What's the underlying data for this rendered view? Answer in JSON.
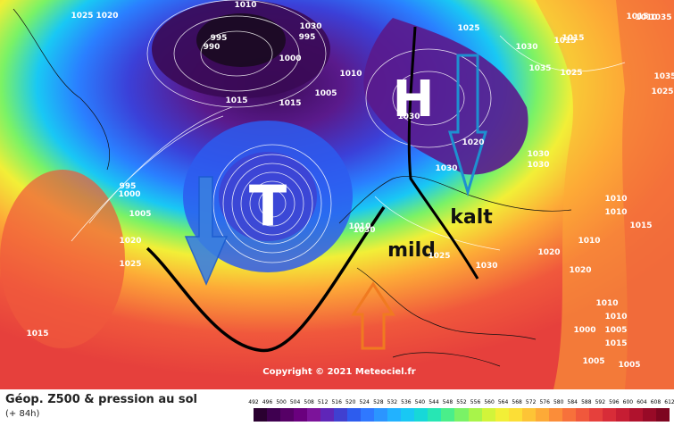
{
  "map": {
    "lows": [
      {
        "label": "T"
      }
    ],
    "highs": [
      {
        "label": "H"
      }
    ],
    "annotations": {
      "cold": "kalt",
      "mild": "mild"
    },
    "copyright": "Copyright © 2021 Meteociel.fr",
    "isobar_labels": [
      "1010",
      "1025",
      "1020",
      "1030",
      "995",
      "990",
      "995",
      "1000",
      "1015",
      "1010",
      "1005",
      "1015",
      "1025",
      "1030",
      "1015",
      "1035",
      "1025",
      "1015",
      "1035",
      "1025",
      "1035",
      "1015",
      "1010",
      "1020",
      "1030",
      "1030",
      "1030",
      "1030",
      "995",
      "1000",
      "1005",
      "1020",
      "1025",
      "1015",
      "1020",
      "1030",
      "1020",
      "1025",
      "1030",
      "1010",
      "1010",
      "1015",
      "1010",
      "1010",
      "1015",
      "1005",
      "1005",
      "1005",
      "1000",
      "1010",
      "1010"
    ]
  },
  "legend": {
    "title": "Géop. Z500 & pression au sol",
    "subtitle": "(+ 84h)",
    "scale": [
      "492",
      "496",
      "500",
      "504",
      "508",
      "512",
      "516",
      "520",
      "524",
      "528",
      "532",
      "536",
      "540",
      "544",
      "548",
      "552",
      "556",
      "560",
      "564",
      "568",
      "572",
      "576",
      "580",
      "584",
      "588",
      "592",
      "596",
      "600",
      "604",
      "608",
      "612"
    ],
    "colors": [
      "#2a0030",
      "#3f0050",
      "#560066",
      "#6a007e",
      "#7c139a",
      "#5f26b8",
      "#4040d0",
      "#2d5cee",
      "#2f78ff",
      "#2b95ff",
      "#22b2ff",
      "#19c8f4",
      "#17d8d8",
      "#27e6b4",
      "#4aee8a",
      "#7af266",
      "#a8f44a",
      "#d2f43a",
      "#f2ef37",
      "#fcde36",
      "#fdc436",
      "#fdaa37",
      "#fb8d39",
      "#f7713b",
      "#f0583c",
      "#e6403c",
      "#d82c38",
      "#c61d33",
      "#b0122d",
      "#980a27",
      "#7e0520"
    ]
  }
}
